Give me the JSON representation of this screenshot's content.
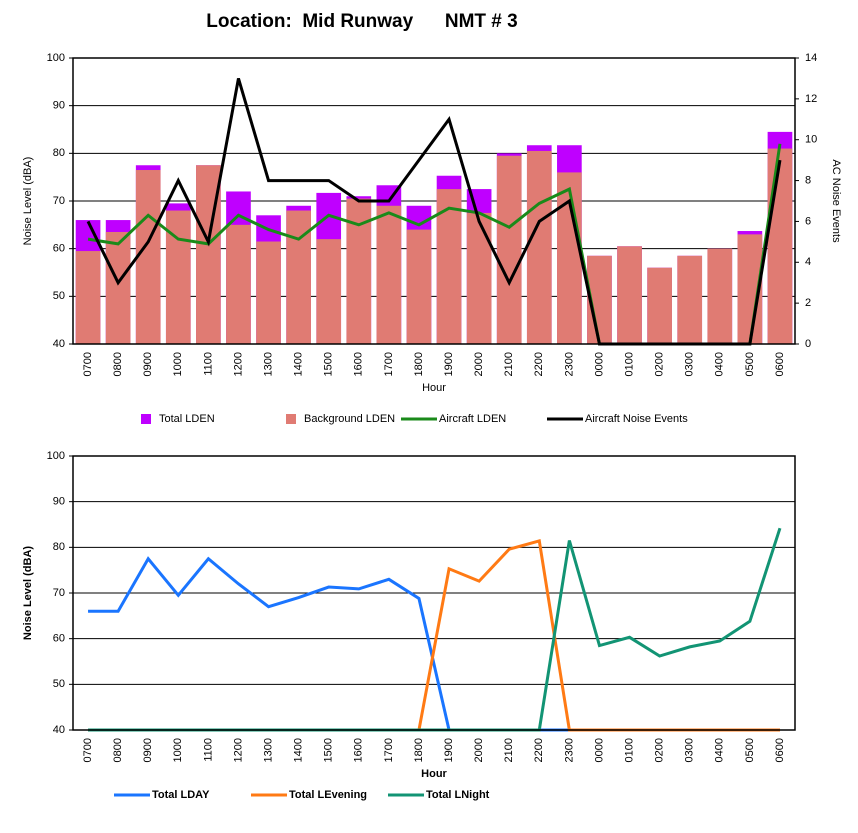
{
  "title": "Location:  Mid Runway      NMT # 3",
  "chart_data": [
    {
      "type": "bar",
      "x_label": "Hour",
      "y_label": "Noise Level (dBA)",
      "y2_label": "AC Noise Events",
      "categories": [
        "0700",
        "0800",
        "0900",
        "1000",
        "1100",
        "1200",
        "1300",
        "1400",
        "1500",
        "1600",
        "1700",
        "1800",
        "1900",
        "2000",
        "2100",
        "2200",
        "2300",
        "0000",
        "0100",
        "0200",
        "0300",
        "0400",
        "0500",
        "0600"
      ],
      "series": [
        {
          "name": "Total LDEN",
          "type": "bar",
          "color": "#bf00ff",
          "values": [
            66,
            66,
            77.5,
            69.5,
            77.5,
            72,
            67,
            69,
            71.7,
            71,
            73.3,
            69,
            75.3,
            72.5,
            80,
            81.7,
            81.7,
            58.5,
            60.5,
            56,
            58.5,
            60,
            63.7,
            84.5
          ]
        },
        {
          "name": "Background LDEN",
          "type": "bar",
          "color": "#e07b73",
          "values": [
            59.5,
            63.5,
            76.5,
            68,
            77.5,
            65,
            61.5,
            68,
            62,
            70.5,
            69,
            64,
            72.5,
            67.5,
            79.5,
            80.5,
            76,
            58.5,
            60.5,
            56,
            58.5,
            60,
            63,
            81
          ]
        },
        {
          "name": "Aircraft LDEN",
          "type": "line",
          "color": "#1a8a1a",
          "values": [
            62,
            61,
            67,
            62,
            61,
            67,
            64,
            62,
            67,
            65,
            67.5,
            65,
            68.5,
            67.5,
            64.5,
            69.5,
            72.5,
            40,
            40,
            40,
            40,
            40,
            40,
            82
          ]
        },
        {
          "name": "Aircraft Noise Events",
          "type": "line",
          "axis": "y2",
          "color": "#000000",
          "values": [
            6,
            3,
            5,
            8,
            5,
            13,
            8,
            8,
            8,
            7,
            7,
            9,
            11,
            6,
            3,
            6,
            7,
            0,
            0,
            0,
            0,
            0,
            0,
            9
          ]
        }
      ],
      "ylim": [
        40,
        100
      ],
      "yticks": [
        40,
        50,
        60,
        70,
        80,
        90,
        100
      ],
      "y2lim": [
        0,
        14
      ],
      "y2ticks": [
        0,
        2,
        4,
        6,
        8,
        10,
        12,
        14
      ],
      "grid": true
    },
    {
      "type": "line",
      "x_label": "Hour",
      "y_label": "Noise Level (dBA)",
      "categories": [
        "0700",
        "0800",
        "0900",
        "1000",
        "1100",
        "1200",
        "1300",
        "1400",
        "1500",
        "1600",
        "1700",
        "1800",
        "1900",
        "2000",
        "2100",
        "2200",
        "2300",
        "0000",
        "0100",
        "0200",
        "0300",
        "0400",
        "0500",
        "0600"
      ],
      "series": [
        {
          "name": "Total LDAY",
          "color": "#1a75ff",
          "values": [
            66,
            66,
            77.5,
            69.5,
            77.5,
            72,
            67,
            69,
            71.3,
            70.9,
            73,
            68.8,
            40,
            40,
            40,
            40,
            40,
            40,
            40,
            40,
            40,
            40,
            40,
            40
          ]
        },
        {
          "name": "Total LEvening",
          "color": "#ff7a14",
          "values": [
            40,
            40,
            40,
            40,
            40,
            40,
            40,
            40,
            40,
            40,
            40,
            40,
            75.3,
            72.6,
            79.6,
            81.4,
            40,
            40,
            40,
            40,
            40,
            40,
            40,
            40
          ]
        },
        {
          "name": "Total LNight",
          "color": "#129474",
          "values": [
            40,
            40,
            40,
            40,
            40,
            40,
            40,
            40,
            40,
            40,
            40,
            40,
            40,
            40,
            40,
            40,
            81.5,
            58.5,
            60.3,
            56.2,
            58.2,
            59.5,
            63.8,
            84.2
          ]
        }
      ],
      "ylim": [
        40,
        100
      ],
      "yticks": [
        40,
        50,
        60,
        70,
        80,
        90,
        100
      ],
      "grid": true
    }
  ]
}
